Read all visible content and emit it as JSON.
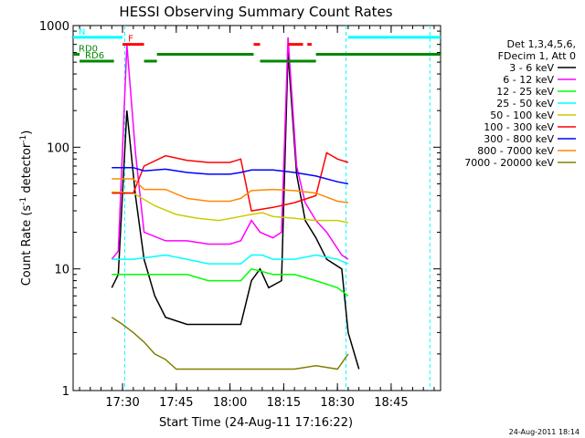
{
  "chart_data": {
    "type": "line",
    "title": "HESSI Observing Summary Count Rates",
    "xlabel": "Start Time (24-Aug-11 17:16:22)",
    "ylabel_main": "Count Rate (s",
    "ylabel_sup1": "-1",
    "ylabel_mid": " detector",
    "ylabel_sup2": "-1",
    "ylabel_end": ")",
    "y_scale": "log",
    "ylim": [
      1,
      1000
    ],
    "xlim_minutes": [
      17.27,
      18.98
    ],
    "x_ticks": [
      {
        "label": "17:30",
        "value": 17.5
      },
      {
        "label": "17:45",
        "value": 17.75
      },
      {
        "label": "18:00",
        "value": 18.0
      },
      {
        "label": "18:15",
        "value": 18.25
      },
      {
        "label": "18:30",
        "value": 18.5
      },
      {
        "label": "18:45",
        "value": 18.75
      }
    ],
    "y_ticks": [
      {
        "label": "1",
        "value": 1
      },
      {
        "label": "10",
        "value": 10
      },
      {
        "label": "100",
        "value": 100
      },
      {
        "label": "1000",
        "value": 1000
      }
    ],
    "legend_header": [
      "Det 1,3,4,5,6,",
      "FDecim 1, Att 0"
    ],
    "series": [
      {
        "name": "3 - 6 keV",
        "color": "#000000",
        "points": [
          [
            17.45,
            7
          ],
          [
            17.48,
            9
          ],
          [
            17.52,
            200
          ],
          [
            17.56,
            40
          ],
          [
            17.6,
            12
          ],
          [
            17.65,
            6
          ],
          [
            17.7,
            4
          ],
          [
            17.8,
            3.5
          ],
          [
            17.9,
            3.5
          ],
          [
            18.0,
            3.5
          ],
          [
            18.05,
            3.5
          ],
          [
            18.1,
            8
          ],
          [
            18.14,
            10
          ],
          [
            18.18,
            7
          ],
          [
            18.24,
            8
          ],
          [
            18.27,
            600
          ],
          [
            18.31,
            60
          ],
          [
            18.35,
            25
          ],
          [
            18.4,
            18
          ],
          [
            18.45,
            12
          ],
          [
            18.52,
            10
          ],
          [
            18.55,
            3
          ],
          [
            18.6,
            1.5
          ]
        ]
      },
      {
        "name": "6 - 12 keV",
        "color": "#ff00ff",
        "points": [
          [
            17.45,
            12
          ],
          [
            17.48,
            14
          ],
          [
            17.52,
            700
          ],
          [
            17.56,
            90
          ],
          [
            17.6,
            20
          ],
          [
            17.7,
            17
          ],
          [
            17.8,
            17
          ],
          [
            17.9,
            16
          ],
          [
            18.0,
            16
          ],
          [
            18.05,
            17
          ],
          [
            18.1,
            25
          ],
          [
            18.14,
            20
          ],
          [
            18.2,
            18
          ],
          [
            18.24,
            20
          ],
          [
            18.27,
            800
          ],
          [
            18.31,
            70
          ],
          [
            18.35,
            35
          ],
          [
            18.4,
            25
          ],
          [
            18.45,
            20
          ],
          [
            18.52,
            13
          ],
          [
            18.55,
            12
          ]
        ]
      },
      {
        "name": "12 - 25 keV",
        "color": "#00ff00",
        "points": [
          [
            17.45,
            9
          ],
          [
            17.55,
            9
          ],
          [
            17.7,
            9
          ],
          [
            17.8,
            9
          ],
          [
            17.9,
            8
          ],
          [
            18.0,
            8
          ],
          [
            18.05,
            8
          ],
          [
            18.1,
            10
          ],
          [
            18.15,
            9.5
          ],
          [
            18.2,
            9
          ],
          [
            18.25,
            9
          ],
          [
            18.3,
            9
          ],
          [
            18.4,
            8
          ],
          [
            18.5,
            7
          ],
          [
            18.55,
            6
          ]
        ]
      },
      {
        "name": "25 - 50 keV",
        "color": "#00ffff",
        "points": [
          [
            17.45,
            12
          ],
          [
            17.55,
            12
          ],
          [
            17.7,
            13
          ],
          [
            17.8,
            12
          ],
          [
            17.9,
            11
          ],
          [
            18.0,
            11
          ],
          [
            18.05,
            11
          ],
          [
            18.1,
            13
          ],
          [
            18.15,
            13
          ],
          [
            18.2,
            12
          ],
          [
            18.3,
            12
          ],
          [
            18.4,
            13
          ],
          [
            18.5,
            12
          ],
          [
            18.55,
            11
          ]
        ]
      },
      {
        "name": "50 - 100 keV",
        "color": "#cccc00",
        "points": [
          [
            17.45,
            43
          ],
          [
            17.55,
            42
          ],
          [
            17.65,
            33
          ],
          [
            17.75,
            28
          ],
          [
            17.85,
            26
          ],
          [
            17.95,
            25
          ],
          [
            18.05,
            27
          ],
          [
            18.1,
            28
          ],
          [
            18.15,
            29
          ],
          [
            18.2,
            27
          ],
          [
            18.3,
            26
          ],
          [
            18.4,
            25
          ],
          [
            18.5,
            25
          ],
          [
            18.55,
            24
          ]
        ]
      },
      {
        "name": "100 - 300 keV",
        "color": "#ff0000",
        "points": [
          [
            17.45,
            42
          ],
          [
            17.55,
            42
          ],
          [
            17.6,
            70
          ],
          [
            17.7,
            85
          ],
          [
            17.8,
            78
          ],
          [
            17.9,
            75
          ],
          [
            18.0,
            75
          ],
          [
            18.05,
            80
          ],
          [
            18.1,
            30
          ],
          [
            18.2,
            32
          ],
          [
            18.3,
            35
          ],
          [
            18.4,
            40
          ],
          [
            18.45,
            90
          ],
          [
            18.5,
            80
          ],
          [
            18.55,
            75
          ]
        ]
      },
      {
        "name": "300 - 800 keV",
        "color": "#0000ff",
        "points": [
          [
            17.45,
            68
          ],
          [
            17.55,
            68
          ],
          [
            17.6,
            64
          ],
          [
            17.7,
            66
          ],
          [
            17.8,
            62
          ],
          [
            17.9,
            60
          ],
          [
            18.0,
            60
          ],
          [
            18.05,
            62
          ],
          [
            18.1,
            65
          ],
          [
            18.2,
            65
          ],
          [
            18.3,
            62
          ],
          [
            18.4,
            58
          ],
          [
            18.5,
            52
          ],
          [
            18.55,
            50
          ]
        ]
      },
      {
        "name": "800 - 7000 keV",
        "color": "#ff8800",
        "points": [
          [
            17.45,
            55
          ],
          [
            17.55,
            55
          ],
          [
            17.6,
            45
          ],
          [
            17.7,
            45
          ],
          [
            17.8,
            38
          ],
          [
            17.9,
            36
          ],
          [
            18.0,
            36
          ],
          [
            18.05,
            38
          ],
          [
            18.1,
            44
          ],
          [
            18.2,
            45
          ],
          [
            18.3,
            44
          ],
          [
            18.4,
            42
          ],
          [
            18.5,
            36
          ],
          [
            18.55,
            35
          ]
        ]
      },
      {
        "name": "7000 - 20000 keV",
        "color": "#808000",
        "points": [
          [
            17.45,
            4
          ],
          [
            17.5,
            3.5
          ],
          [
            17.55,
            3
          ],
          [
            17.6,
            2.5
          ],
          [
            17.65,
            2
          ],
          [
            17.7,
            1.8
          ],
          [
            17.75,
            1.5
          ],
          [
            17.8,
            1.5
          ],
          [
            17.9,
            1.5
          ],
          [
            18.0,
            1.5
          ],
          [
            18.1,
            1.5
          ],
          [
            18.2,
            1.5
          ],
          [
            18.3,
            1.5
          ],
          [
            18.4,
            1.6
          ],
          [
            18.5,
            1.5
          ],
          [
            18.55,
            2
          ]
        ]
      }
    ],
    "state_bars": [
      {
        "label": "N",
        "color": "#00ffff",
        "segments": [
          [
            17.27,
            17.5
          ],
          [
            18.55,
            18.98
          ]
        ],
        "level": 800
      },
      {
        "label": "F",
        "color": "#ff0000",
        "segments": [
          [
            17.5,
            17.6
          ],
          [
            18.11,
            18.14
          ],
          [
            18.27,
            18.34
          ],
          [
            18.36,
            18.38
          ]
        ],
        "level": 700
      },
      {
        "label": "RD0",
        "color": "#008800",
        "segments": [
          [
            17.27,
            17.3
          ],
          [
            17.66,
            18.11
          ],
          [
            18.4,
            18.98
          ]
        ],
        "level": 580
      },
      {
        "label": "RD6",
        "color": "#008800",
        "segments": [
          [
            17.3,
            17.46
          ],
          [
            17.6,
            17.66
          ],
          [
            18.14,
            18.4
          ]
        ],
        "level": 510
      }
    ],
    "vlines": [
      17.51,
      18.54,
      18.93
    ],
    "footer_date": "24-Aug-2011 18:14"
  }
}
